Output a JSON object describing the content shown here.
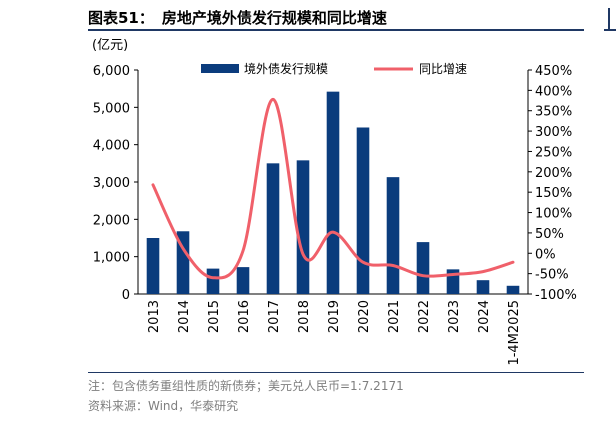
{
  "header": {
    "label": "图表51：",
    "title": "房地产境外债发行规模和同比增速"
  },
  "footer": {
    "note": "注：包含债务重组性质的新债券；美元兑人民币=1:7.2171",
    "source": "资料来源：Wind，华泰研究"
  },
  "chart_data": {
    "type": "bar+line",
    "categories": [
      "2013",
      "2014",
      "2015",
      "2016",
      "2017",
      "2018",
      "2019",
      "2020",
      "2021",
      "2022",
      "2023",
      "2024",
      "1-4M2025"
    ],
    "left_axis": {
      "unit_label": "(亿元)",
      "ylim": [
        0,
        6000
      ],
      "ticks": [
        "0",
        "1,000",
        "2,000",
        "3,000",
        "4,000",
        "5,000",
        "6,000"
      ]
    },
    "right_axis": {
      "ylim": [
        -100,
        450
      ],
      "ticks": [
        "-100%",
        "-50%",
        "0%",
        "50%",
        "100%",
        "150%",
        "200%",
        "250%",
        "300%",
        "350%",
        "400%",
        "450%"
      ]
    },
    "series": [
      {
        "name": "境外债发行规模",
        "kind": "bar",
        "axis": "left",
        "color": "#0b3c7d",
        "values": [
          1500,
          1680,
          680,
          720,
          3500,
          3580,
          5420,
          4460,
          3130,
          1390,
          660,
          370,
          220
        ]
      },
      {
        "name": "同比增速",
        "kind": "line",
        "axis": "right",
        "color": "#f0606a",
        "values": [
          168,
          12,
          -60,
          6,
          378,
          -2,
          52,
          -22,
          -30,
          -55,
          -52,
          -45,
          -22
        ]
      }
    ],
    "legend_position": "top",
    "grid": false
  }
}
